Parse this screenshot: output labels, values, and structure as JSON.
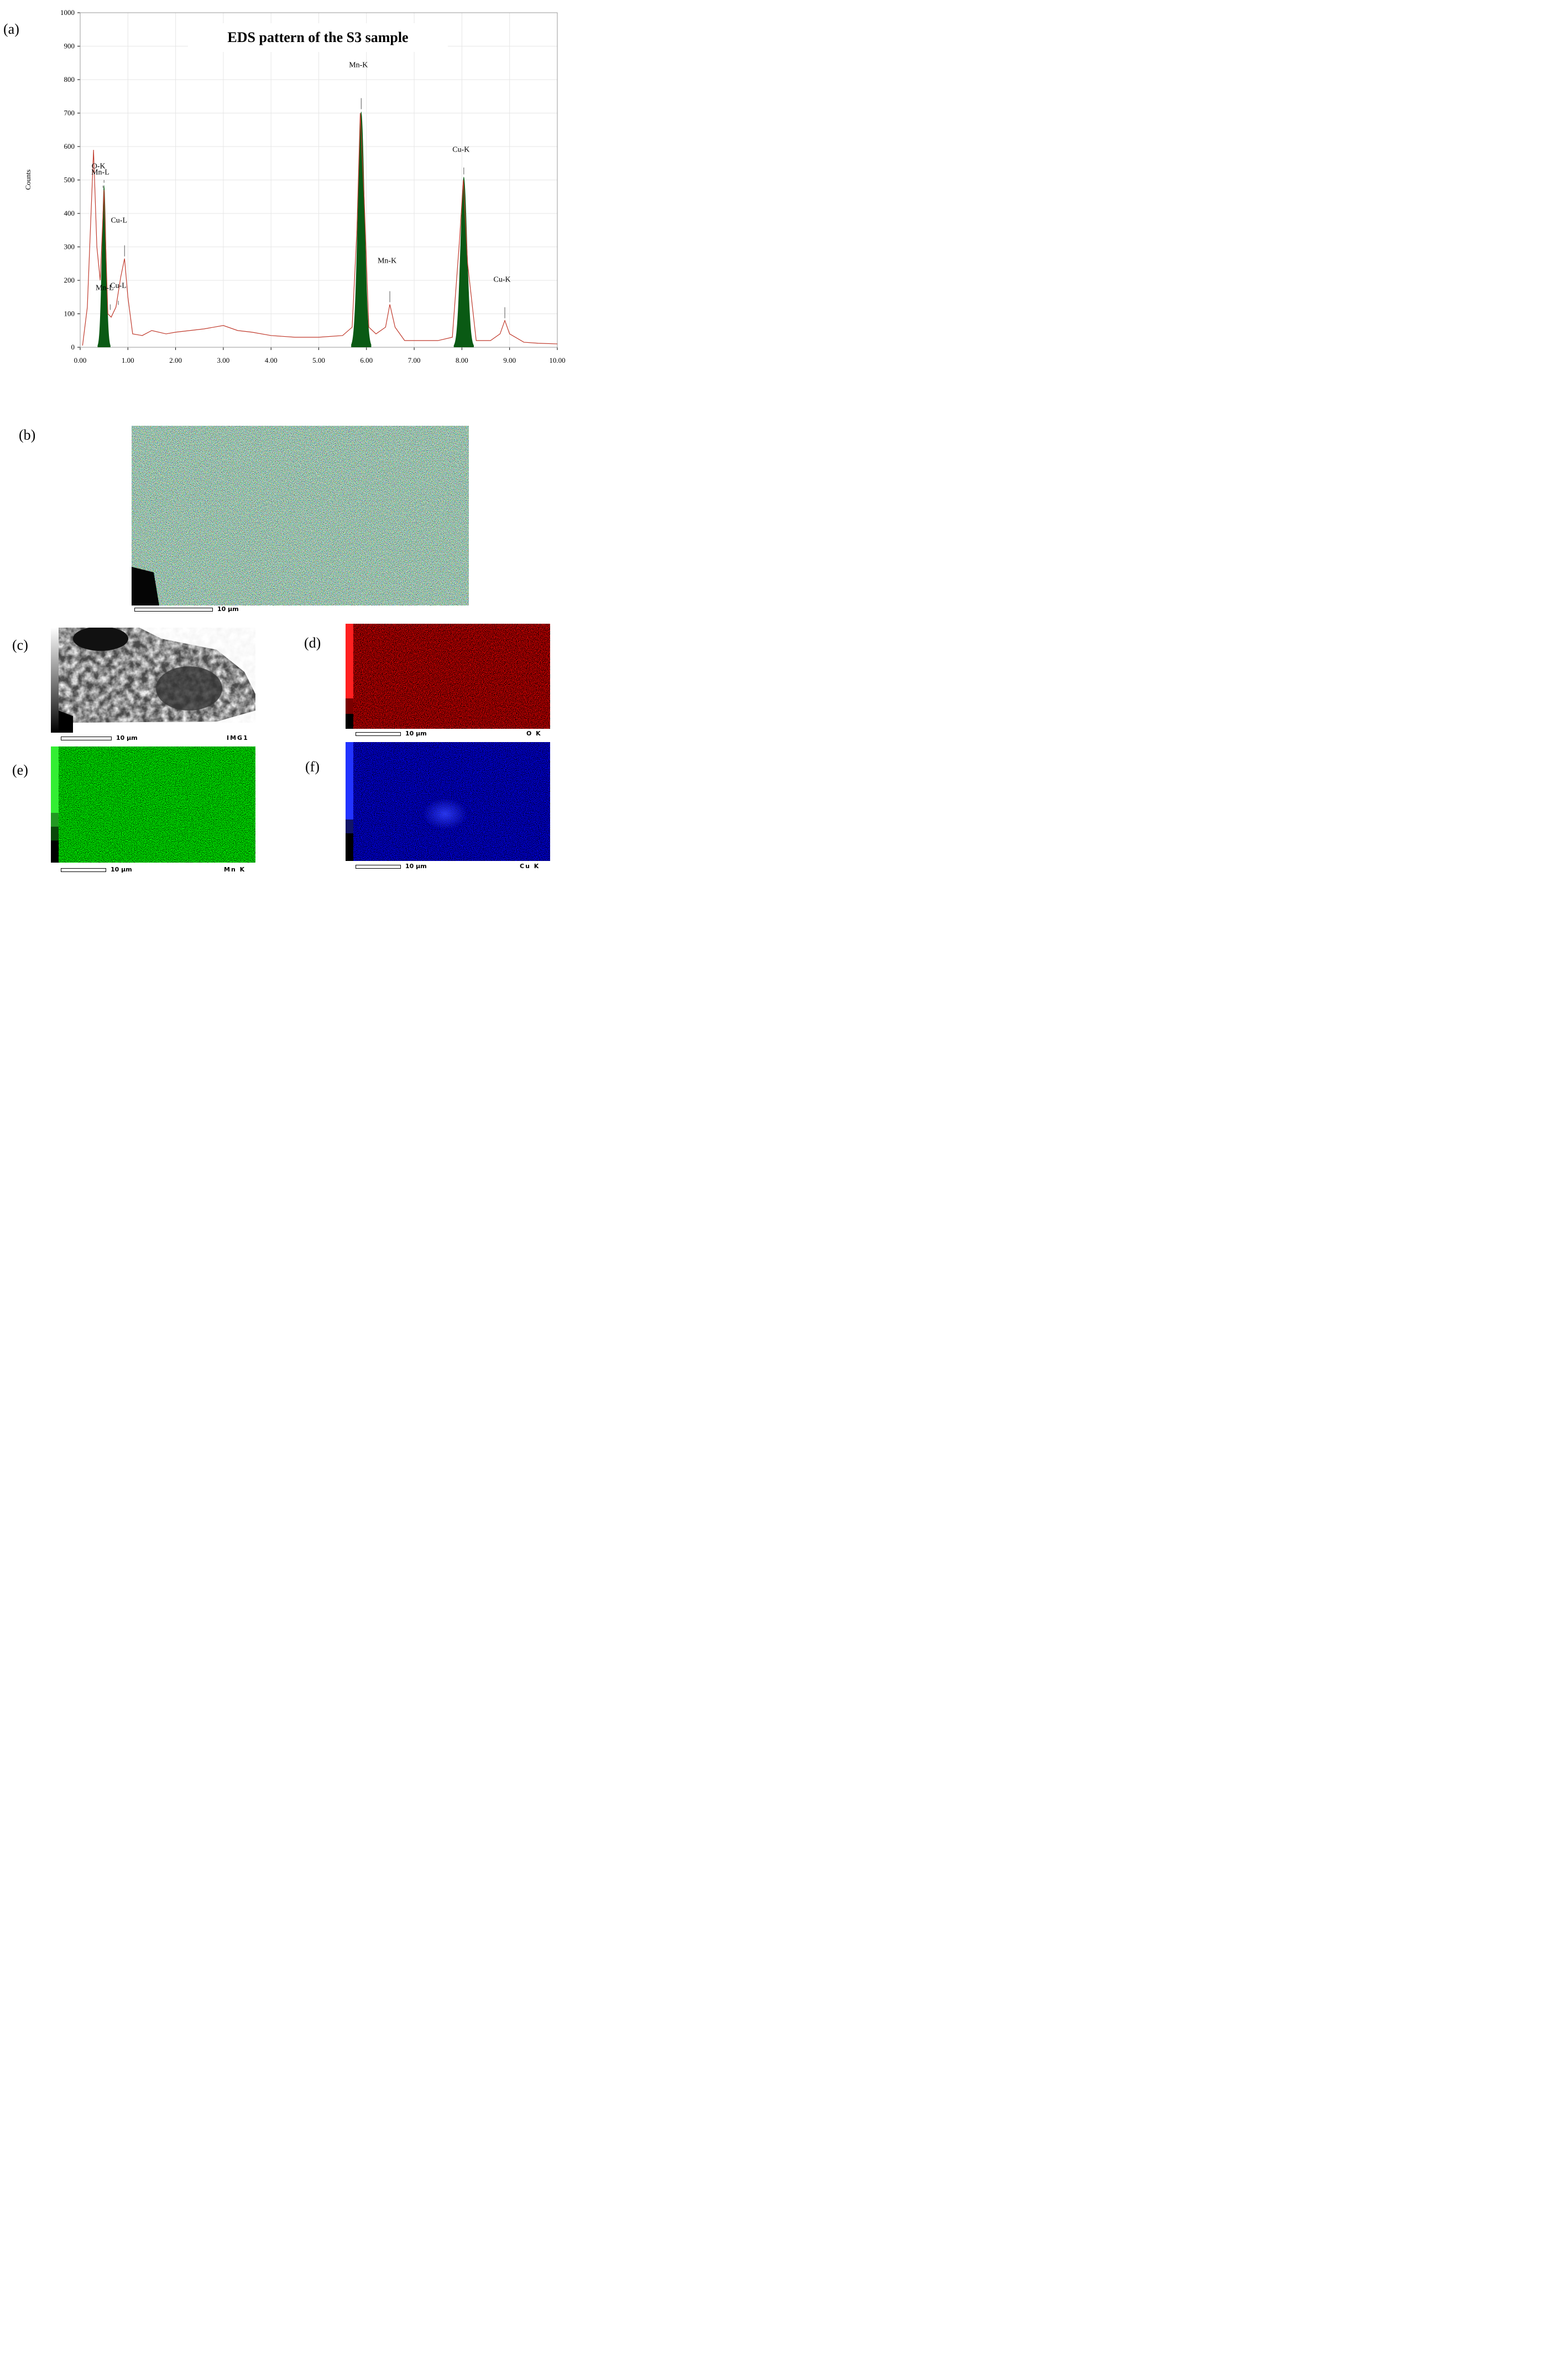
{
  "figure": {
    "panels": {
      "a": "(a)",
      "b": "(b)",
      "c": "(c)",
      "d": "(d)",
      "e": "(e)",
      "f": "(f)"
    },
    "scale_label": "10 μm",
    "channels": {
      "c": "IMG1",
      "d": "O K",
      "e": "Mn K",
      "f": "Cu K"
    },
    "colors": {
      "spectrum": "#c0392b",
      "peak_fill": "#0a5a14",
      "o_map": "#ff2a2a",
      "mn_map": "#33ee33",
      "cu_map": "#2233ff"
    }
  },
  "chart_data": {
    "type": "line",
    "title": "EDS pattern of the S3 sample",
    "xlabel": "",
    "ylabel": "Counts",
    "xlim": [
      0,
      10
    ],
    "ylim": [
      0,
      1000
    ],
    "xticks": [
      "0.00",
      "1.00",
      "2.00",
      "3.00",
      "4.00",
      "5.00",
      "6.00",
      "7.00",
      "8.00",
      "9.00",
      "10.00"
    ],
    "yticks": [
      "0",
      "100",
      "200",
      "300",
      "400",
      "500",
      "600",
      "700",
      "800",
      "900",
      "1000"
    ],
    "grid": true,
    "series": [
      {
        "x": [
          0.05,
          0.15,
          0.25,
          0.28,
          0.35,
          0.42,
          0.5,
          0.58,
          0.65,
          0.75,
          0.85,
          0.93,
          1.0,
          1.1,
          1.3,
          1.5,
          1.8,
          2.0,
          2.3,
          2.6,
          3.0,
          3.3,
          3.6,
          4.0,
          4.5,
          5.0,
          5.5,
          5.7,
          5.8,
          5.87,
          5.95,
          6.05,
          6.2,
          6.4,
          6.49,
          6.6,
          6.8,
          7.0,
          7.5,
          7.8,
          7.95,
          8.03,
          8.12,
          8.3,
          8.6,
          8.8,
          8.9,
          9.0,
          9.3,
          9.6,
          10.0
        ],
        "y": [
          5,
          120,
          480,
          590,
          300,
          200,
          470,
          100,
          90,
          120,
          210,
          265,
          150,
          40,
          35,
          50,
          40,
          45,
          50,
          55,
          65,
          50,
          45,
          35,
          30,
          30,
          35,
          60,
          350,
          700,
          450,
          60,
          40,
          60,
          128,
          60,
          20,
          20,
          20,
          30,
          320,
          500,
          250,
          20,
          20,
          40,
          80,
          40,
          15,
          12,
          10
        ]
      }
    ],
    "peaks": [
      {
        "label": "O-K",
        "x": 0.5,
        "y": 485
      },
      {
        "label": "Mn-L",
        "x": 0.48,
        "y": 470
      },
      {
        "label": "Mn-L",
        "x": 0.63,
        "y": 105
      },
      {
        "label": "Cu-L",
        "x": 0.93,
        "y": 265
      },
      {
        "label": "Cu-L",
        "x": 0.8,
        "y": 120
      },
      {
        "label": "Mn-K",
        "x": 5.89,
        "y": 705
      },
      {
        "label": "Mn-K",
        "x": 6.49,
        "y": 128
      },
      {
        "label": "Cu-K",
        "x": 8.04,
        "y": 510
      },
      {
        "label": "Cu-K",
        "x": 8.9,
        "y": 80
      }
    ]
  }
}
